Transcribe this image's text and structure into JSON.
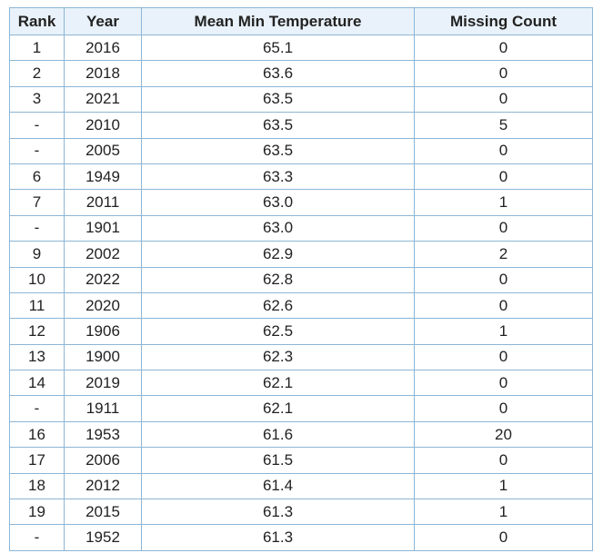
{
  "table": {
    "headers": [
      "Rank",
      "Year",
      "Mean Min Temperature",
      "Missing Count"
    ],
    "rows": [
      [
        "1",
        "2016",
        "65.1",
        "0"
      ],
      [
        "2",
        "2018",
        "63.6",
        "0"
      ],
      [
        "3",
        "2021",
        "63.5",
        "0"
      ],
      [
        "-",
        "2010",
        "63.5",
        "5"
      ],
      [
        "-",
        "2005",
        "63.5",
        "0"
      ],
      [
        "6",
        "1949",
        "63.3",
        "0"
      ],
      [
        "7",
        "2011",
        "63.0",
        "1"
      ],
      [
        "-",
        "1901",
        "63.0",
        "0"
      ],
      [
        "9",
        "2002",
        "62.9",
        "2"
      ],
      [
        "10",
        "2022",
        "62.8",
        "0"
      ],
      [
        "11",
        "2020",
        "62.6",
        "0"
      ],
      [
        "12",
        "1906",
        "62.5",
        "1"
      ],
      [
        "13",
        "1900",
        "62.3",
        "0"
      ],
      [
        "14",
        "2019",
        "62.1",
        "0"
      ],
      [
        "-",
        "1911",
        "62.1",
        "0"
      ],
      [
        "16",
        "1953",
        "61.6",
        "20"
      ],
      [
        "17",
        "2006",
        "61.5",
        "0"
      ],
      [
        "18",
        "2012",
        "61.4",
        "1"
      ],
      [
        "19",
        "2015",
        "61.3",
        "1"
      ],
      [
        "-",
        "1952",
        "61.3",
        "0"
      ]
    ]
  }
}
